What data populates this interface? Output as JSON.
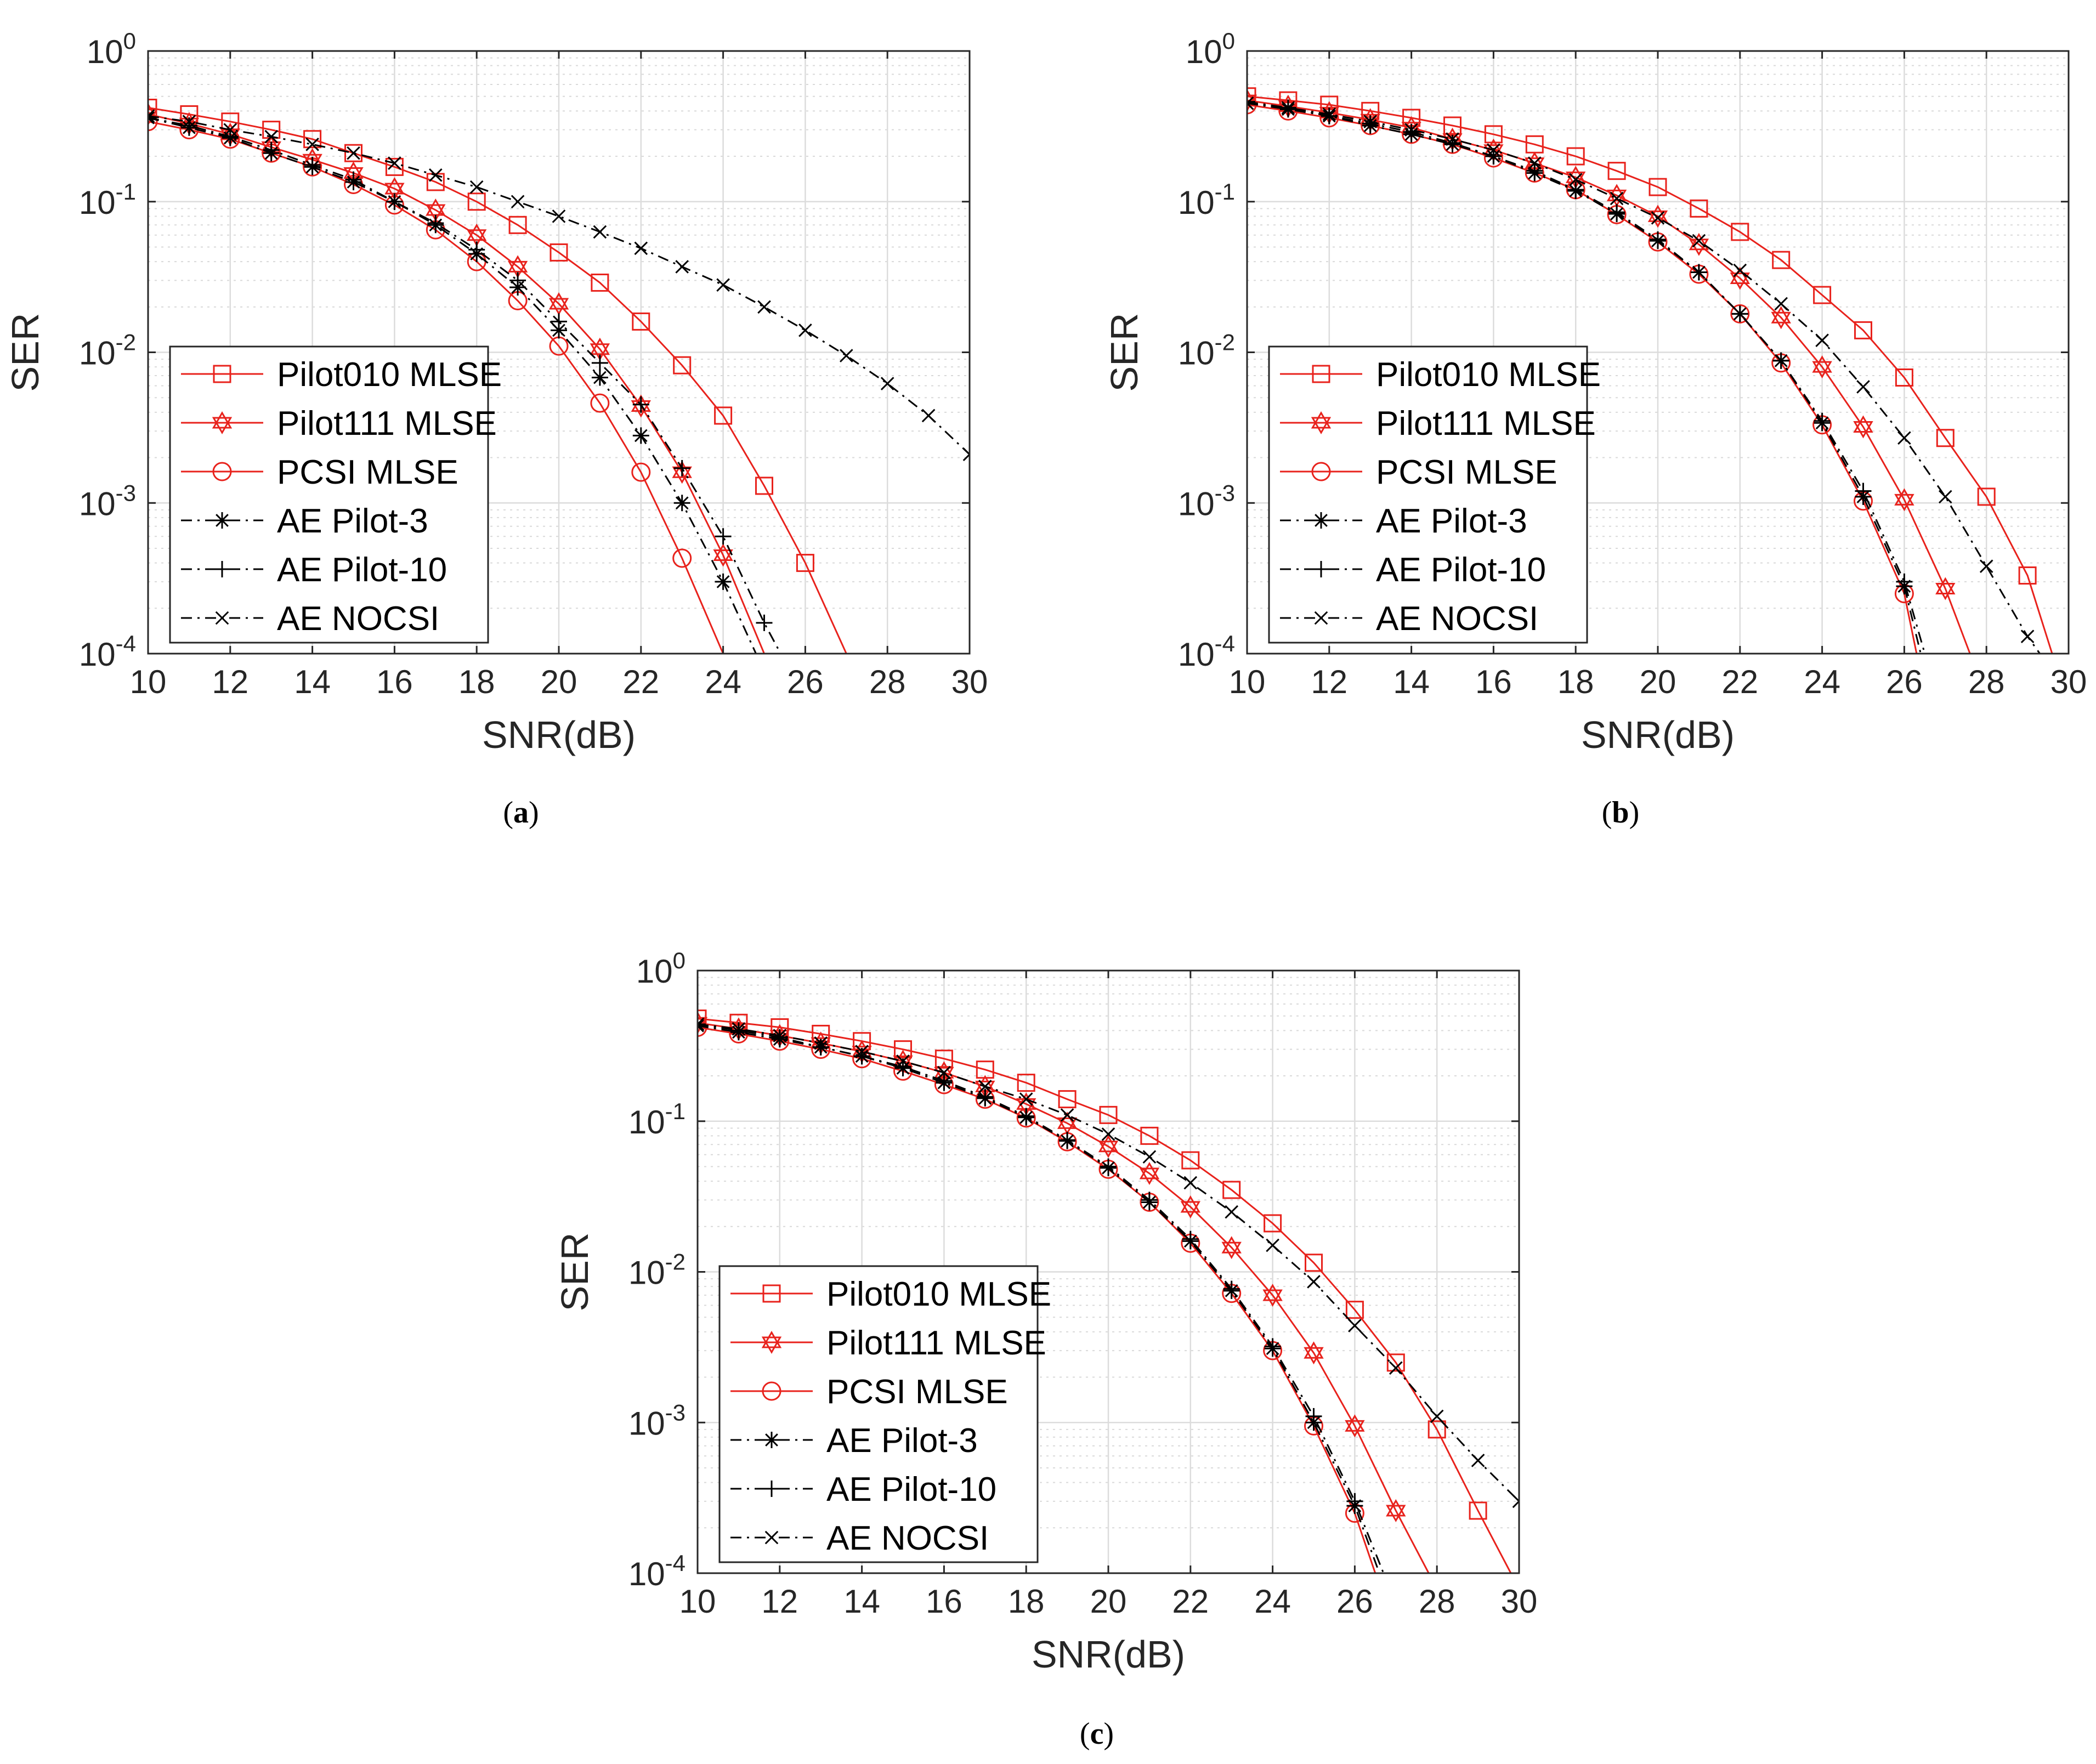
{
  "chart_data": [
    {
      "type": "line",
      "caption": "(a)",
      "xlabel": "SNR(dB)",
      "ylabel": "SER",
      "yscale": "log",
      "xlim": [
        10,
        30
      ],
      "ylim": [
        0.0001,
        1
      ],
      "xticks": [
        "10",
        "12",
        "14",
        "16",
        "18",
        "20",
        "22",
        "24",
        "26",
        "28",
        "30"
      ],
      "yticks": [
        {
          "base": "10",
          "exp": "0"
        },
        {
          "base": "10",
          "exp": "-1"
        },
        {
          "base": "10",
          "exp": "-2"
        },
        {
          "base": "10",
          "exp": "-3"
        },
        {
          "base": "10",
          "exp": "-4"
        }
      ],
      "grid": true,
      "legend": "lower-left",
      "series": [
        {
          "name": "Pilot010 MLSE",
          "color": "#e8221c",
          "marker": "square",
          "dash": "solid",
          "x": [
            10,
            11,
            12,
            13,
            14,
            15,
            16,
            17,
            18,
            19,
            20,
            21,
            22,
            23,
            24,
            25,
            26,
            27
          ],
          "y": [
            0.42,
            0.38,
            0.34,
            0.3,
            0.26,
            0.21,
            0.17,
            0.135,
            0.1,
            0.07,
            0.046,
            0.029,
            0.016,
            0.0082,
            0.0038,
            0.0013,
            0.0004,
            0.0001
          ]
        },
        {
          "name": "Pilot111 MLSE",
          "color": "#e8221c",
          "marker": "star",
          "dash": "solid",
          "x": [
            10,
            11,
            12,
            13,
            14,
            15,
            16,
            17,
            18,
            19,
            20,
            21,
            22,
            23,
            24,
            25
          ],
          "y": [
            0.38,
            0.33,
            0.28,
            0.23,
            0.19,
            0.155,
            0.122,
            0.088,
            0.06,
            0.037,
            0.021,
            0.0105,
            0.0044,
            0.0016,
            0.00045,
            0.0001
          ]
        },
        {
          "name": "PCSI MLSE",
          "color": "#e8221c",
          "marker": "circle",
          "dash": "solid",
          "x": [
            10,
            11,
            12,
            13,
            14,
            15,
            16,
            17,
            18,
            19,
            20,
            21,
            22,
            23,
            24
          ],
          "y": [
            0.34,
            0.3,
            0.26,
            0.21,
            0.17,
            0.13,
            0.095,
            0.065,
            0.04,
            0.022,
            0.011,
            0.0046,
            0.0016,
            0.00043,
            0.0001
          ]
        },
        {
          "name": "AE Pilot-3",
          "color": "#000000",
          "marker": "asterisk",
          "dash": "dashdot",
          "x": [
            10,
            11,
            12,
            13,
            14,
            15,
            16,
            17,
            18,
            19,
            20,
            21,
            22,
            23,
            24,
            24.8
          ],
          "y": [
            0.36,
            0.31,
            0.265,
            0.21,
            0.17,
            0.135,
            0.1,
            0.07,
            0.045,
            0.027,
            0.014,
            0.0068,
            0.0028,
            0.001,
            0.0003,
            0.0001
          ]
        },
        {
          "name": "AE Pilot-10",
          "color": "#000000",
          "marker": "plus",
          "dash": "dashdot",
          "x": [
            10,
            11,
            12,
            13,
            14,
            15,
            16,
            17,
            18,
            19,
            20,
            21,
            22,
            23,
            24,
            25,
            25.4
          ],
          "y": [
            0.36,
            0.32,
            0.27,
            0.22,
            0.175,
            0.14,
            0.1,
            0.072,
            0.048,
            0.03,
            0.016,
            0.0085,
            0.0045,
            0.0017,
            0.0006,
            0.00016,
            0.0001
          ]
        },
        {
          "name": "AE NOCSI",
          "color": "#000000",
          "marker": "x",
          "dash": "dashdot",
          "x": [
            10,
            11,
            12,
            13,
            14,
            15,
            16,
            17,
            18,
            19,
            20,
            21,
            22,
            23,
            24,
            25,
            26,
            27,
            28,
            29,
            30
          ],
          "y": [
            0.37,
            0.34,
            0.3,
            0.27,
            0.24,
            0.21,
            0.18,
            0.15,
            0.125,
            0.1,
            0.08,
            0.063,
            0.049,
            0.037,
            0.028,
            0.02,
            0.014,
            0.0095,
            0.0062,
            0.0038,
            0.0021
          ]
        }
      ]
    },
    {
      "type": "line",
      "caption": "(b)",
      "xlabel": "SNR(dB)",
      "ylabel": "SER",
      "yscale": "log",
      "xlim": [
        10,
        30
      ],
      "ylim": [
        0.0001,
        1
      ],
      "xticks": [
        "10",
        "12",
        "14",
        "16",
        "18",
        "20",
        "22",
        "24",
        "26",
        "28",
        "30"
      ],
      "yticks": [
        {
          "base": "10",
          "exp": "0"
        },
        {
          "base": "10",
          "exp": "-1"
        },
        {
          "base": "10",
          "exp": "-2"
        },
        {
          "base": "10",
          "exp": "-3"
        },
        {
          "base": "10",
          "exp": "-4"
        }
      ],
      "grid": true,
      "legend": "lower-left",
      "series": [
        {
          "name": "Pilot010 MLSE",
          "color": "#e8221c",
          "marker": "square",
          "dash": "solid",
          "x": [
            10,
            11,
            12,
            13,
            14,
            15,
            16,
            17,
            18,
            19,
            20,
            21,
            22,
            23,
            24,
            25,
            26,
            27,
            28,
            29,
            29.6
          ],
          "y": [
            0.5,
            0.47,
            0.44,
            0.4,
            0.36,
            0.32,
            0.28,
            0.24,
            0.2,
            0.16,
            0.125,
            0.09,
            0.063,
            0.041,
            0.024,
            0.014,
            0.0068,
            0.0027,
            0.0011,
            0.00033,
            0.0001
          ]
        },
        {
          "name": "Pilot111 MLSE",
          "color": "#e8221c",
          "marker": "star",
          "dash": "solid",
          "x": [
            10,
            11,
            12,
            13,
            14,
            15,
            16,
            17,
            18,
            19,
            20,
            21,
            22,
            23,
            24,
            25,
            26,
            27,
            27.6
          ],
          "y": [
            0.47,
            0.43,
            0.39,
            0.35,
            0.31,
            0.26,
            0.22,
            0.18,
            0.145,
            0.11,
            0.08,
            0.052,
            0.031,
            0.017,
            0.008,
            0.0032,
            0.00105,
            0.00027,
            0.0001
          ]
        },
        {
          "name": "PCSI MLSE",
          "color": "#e8221c",
          "marker": "circle",
          "dash": "solid",
          "x": [
            10,
            11,
            12,
            13,
            14,
            15,
            16,
            17,
            18,
            19,
            20,
            21,
            22,
            23,
            24,
            25,
            26,
            26.3
          ],
          "y": [
            0.44,
            0.4,
            0.36,
            0.32,
            0.28,
            0.24,
            0.195,
            0.155,
            0.12,
            0.082,
            0.054,
            0.033,
            0.018,
            0.0085,
            0.0033,
            0.00103,
            0.00025,
            0.0001
          ]
        },
        {
          "name": "AE Pilot-3",
          "color": "#000000",
          "marker": "asterisk",
          "dash": "dashdot",
          "x": [
            10,
            11,
            12,
            13,
            14,
            15,
            16,
            17,
            18,
            19,
            20,
            21,
            22,
            23,
            24,
            25,
            26,
            26.4
          ],
          "y": [
            0.45,
            0.41,
            0.37,
            0.32,
            0.28,
            0.24,
            0.2,
            0.155,
            0.118,
            0.083,
            0.055,
            0.034,
            0.018,
            0.0088,
            0.0034,
            0.0011,
            0.00028,
            0.0001
          ]
        },
        {
          "name": "AE Pilot-10",
          "color": "#000000",
          "marker": "plus",
          "dash": "dashdot",
          "x": [
            10,
            11,
            12,
            13,
            14,
            15,
            16,
            17,
            18,
            19,
            20,
            21,
            22,
            23,
            24,
            25,
            26,
            26.5
          ],
          "y": [
            0.46,
            0.42,
            0.37,
            0.33,
            0.29,
            0.245,
            0.2,
            0.16,
            0.12,
            0.085,
            0.056,
            0.034,
            0.018,
            0.0088,
            0.0035,
            0.0012,
            0.0003,
            0.0001
          ]
        },
        {
          "name": "AE NOCSI",
          "color": "#000000",
          "marker": "x",
          "dash": "dashdot",
          "x": [
            10,
            11,
            12,
            13,
            14,
            15,
            16,
            17,
            18,
            19,
            20,
            21,
            22,
            23,
            24,
            25,
            26,
            27,
            28,
            29,
            29.3
          ],
          "y": [
            0.45,
            0.42,
            0.38,
            0.34,
            0.3,
            0.26,
            0.22,
            0.18,
            0.14,
            0.105,
            0.078,
            0.055,
            0.035,
            0.021,
            0.012,
            0.0059,
            0.0027,
            0.0011,
            0.00038,
            0.00013,
            0.0001
          ]
        }
      ]
    },
    {
      "type": "line",
      "caption": "(c)",
      "xlabel": "SNR(dB)",
      "ylabel": "SER",
      "yscale": "log",
      "xlim": [
        10,
        30
      ],
      "ylim": [
        0.0001,
        1
      ],
      "xticks": [
        "10",
        "12",
        "14",
        "16",
        "18",
        "20",
        "22",
        "24",
        "26",
        "28",
        "30"
      ],
      "yticks": [
        {
          "base": "10",
          "exp": "0"
        },
        {
          "base": "10",
          "exp": "-1"
        },
        {
          "base": "10",
          "exp": "-2"
        },
        {
          "base": "10",
          "exp": "-3"
        },
        {
          "base": "10",
          "exp": "-4"
        }
      ],
      "grid": true,
      "legend": "lower-left",
      "series": [
        {
          "name": "Pilot010 MLSE",
          "color": "#e8221c",
          "marker": "square",
          "dash": "solid",
          "x": [
            10,
            11,
            12,
            13,
            14,
            15,
            16,
            17,
            18,
            19,
            20,
            21,
            22,
            23,
            24,
            25,
            26,
            27,
            28,
            29,
            29.8
          ],
          "y": [
            0.48,
            0.45,
            0.42,
            0.38,
            0.34,
            0.3,
            0.26,
            0.22,
            0.18,
            0.14,
            0.11,
            0.08,
            0.055,
            0.035,
            0.021,
            0.0115,
            0.0056,
            0.0025,
            0.0009,
            0.00026,
            0.0001
          ]
        },
        {
          "name": "Pilot111 MLSE",
          "color": "#e8221c",
          "marker": "star",
          "dash": "solid",
          "x": [
            10,
            11,
            12,
            13,
            14,
            15,
            16,
            17,
            18,
            19,
            20,
            21,
            22,
            23,
            24,
            25,
            26,
            27,
            27.8
          ],
          "y": [
            0.45,
            0.41,
            0.37,
            0.33,
            0.29,
            0.25,
            0.21,
            0.17,
            0.13,
            0.097,
            0.068,
            0.045,
            0.027,
            0.0145,
            0.007,
            0.0029,
            0.00095,
            0.00026,
            0.0001
          ]
        },
        {
          "name": "PCSI MLSE",
          "color": "#e8221c",
          "marker": "circle",
          "dash": "solid",
          "x": [
            10,
            11,
            12,
            13,
            14,
            15,
            16,
            17,
            18,
            19,
            20,
            21,
            22,
            23,
            24,
            25,
            26,
            26.5
          ],
          "y": [
            0.42,
            0.38,
            0.34,
            0.3,
            0.26,
            0.215,
            0.175,
            0.14,
            0.105,
            0.073,
            0.048,
            0.029,
            0.0155,
            0.0072,
            0.003,
            0.00095,
            0.00025,
            0.0001
          ]
        },
        {
          "name": "AE Pilot-3",
          "color": "#000000",
          "marker": "asterisk",
          "dash": "dashdot",
          "x": [
            10,
            11,
            12,
            13,
            14,
            15,
            16,
            17,
            18,
            19,
            20,
            21,
            22,
            23,
            24,
            25,
            26,
            26.6
          ],
          "y": [
            0.43,
            0.39,
            0.35,
            0.31,
            0.27,
            0.225,
            0.18,
            0.142,
            0.106,
            0.074,
            0.049,
            0.029,
            0.016,
            0.0075,
            0.0031,
            0.001,
            0.00028,
            0.0001
          ]
        },
        {
          "name": "AE Pilot-10",
          "color": "#000000",
          "marker": "plus",
          "dash": "dashdot",
          "x": [
            10,
            11,
            12,
            13,
            14,
            15,
            16,
            17,
            18,
            19,
            20,
            21,
            22,
            23,
            24,
            25,
            26,
            26.7
          ],
          "y": [
            0.44,
            0.4,
            0.36,
            0.31,
            0.27,
            0.23,
            0.185,
            0.145,
            0.108,
            0.075,
            0.05,
            0.03,
            0.0165,
            0.0077,
            0.0032,
            0.0011,
            0.0003,
            0.0001
          ]
        },
        {
          "name": "AE NOCSI",
          "color": "#000000",
          "marker": "x",
          "dash": "dashdot",
          "x": [
            10,
            11,
            12,
            13,
            14,
            15,
            16,
            17,
            18,
            19,
            20,
            21,
            22,
            23,
            24,
            25,
            26,
            27,
            28,
            29,
            30
          ],
          "y": [
            0.44,
            0.41,
            0.37,
            0.33,
            0.29,
            0.25,
            0.21,
            0.17,
            0.14,
            0.11,
            0.082,
            0.058,
            0.039,
            0.025,
            0.015,
            0.0086,
            0.0044,
            0.0023,
            0.0011,
            0.00056,
            0.0003
          ]
        }
      ]
    }
  ]
}
